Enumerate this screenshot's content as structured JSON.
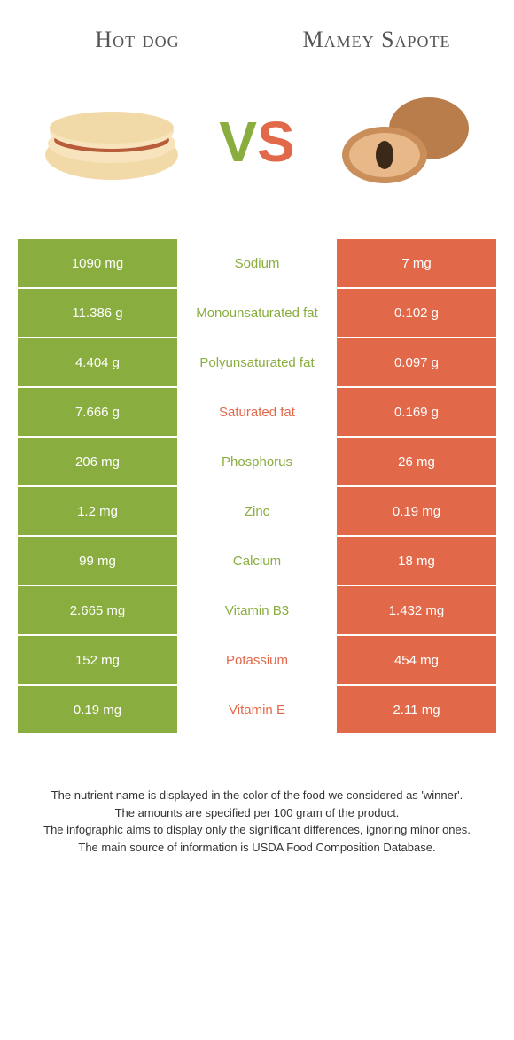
{
  "header": {
    "left_title": "Hot dog",
    "right_title": "Mamey Sapote",
    "vs_v": "V",
    "vs_s": "S"
  },
  "colors": {
    "left": "#8aad3f",
    "right": "#e2684a",
    "bg": "#ffffff"
  },
  "rows": [
    {
      "left": "1090 mg",
      "mid": "Sodium",
      "winner": "left",
      "right": "7 mg"
    },
    {
      "left": "11.386 g",
      "mid": "Monounsaturated fat",
      "winner": "left",
      "right": "0.102 g"
    },
    {
      "left": "4.404 g",
      "mid": "Polyunsaturated fat",
      "winner": "left",
      "right": "0.097 g"
    },
    {
      "left": "7.666 g",
      "mid": "Saturated fat",
      "winner": "right",
      "right": "0.169 g"
    },
    {
      "left": "206 mg",
      "mid": "Phosphorus",
      "winner": "left",
      "right": "26 mg"
    },
    {
      "left": "1.2 mg",
      "mid": "Zinc",
      "winner": "left",
      "right": "0.19 mg"
    },
    {
      "left": "99 mg",
      "mid": "Calcium",
      "winner": "left",
      "right": "18 mg"
    },
    {
      "left": "2.665 mg",
      "mid": "Vitamin B3",
      "winner": "left",
      "right": "1.432 mg"
    },
    {
      "left": "152 mg",
      "mid": "Potassium",
      "winner": "right",
      "right": "454 mg"
    },
    {
      "left": "0.19 mg",
      "mid": "Vitamin E",
      "winner": "right",
      "right": "2.11 mg"
    }
  ],
  "footnotes": {
    "l1": "The nutrient name is displayed in the color of the food we considered as 'winner'.",
    "l2": "The amounts are specified per 100 gram of the product.",
    "l3": "The infographic aims to display only the significant differences, ignoring minor ones.",
    "l4": "The main source of information is USDA Food Composition Database."
  }
}
